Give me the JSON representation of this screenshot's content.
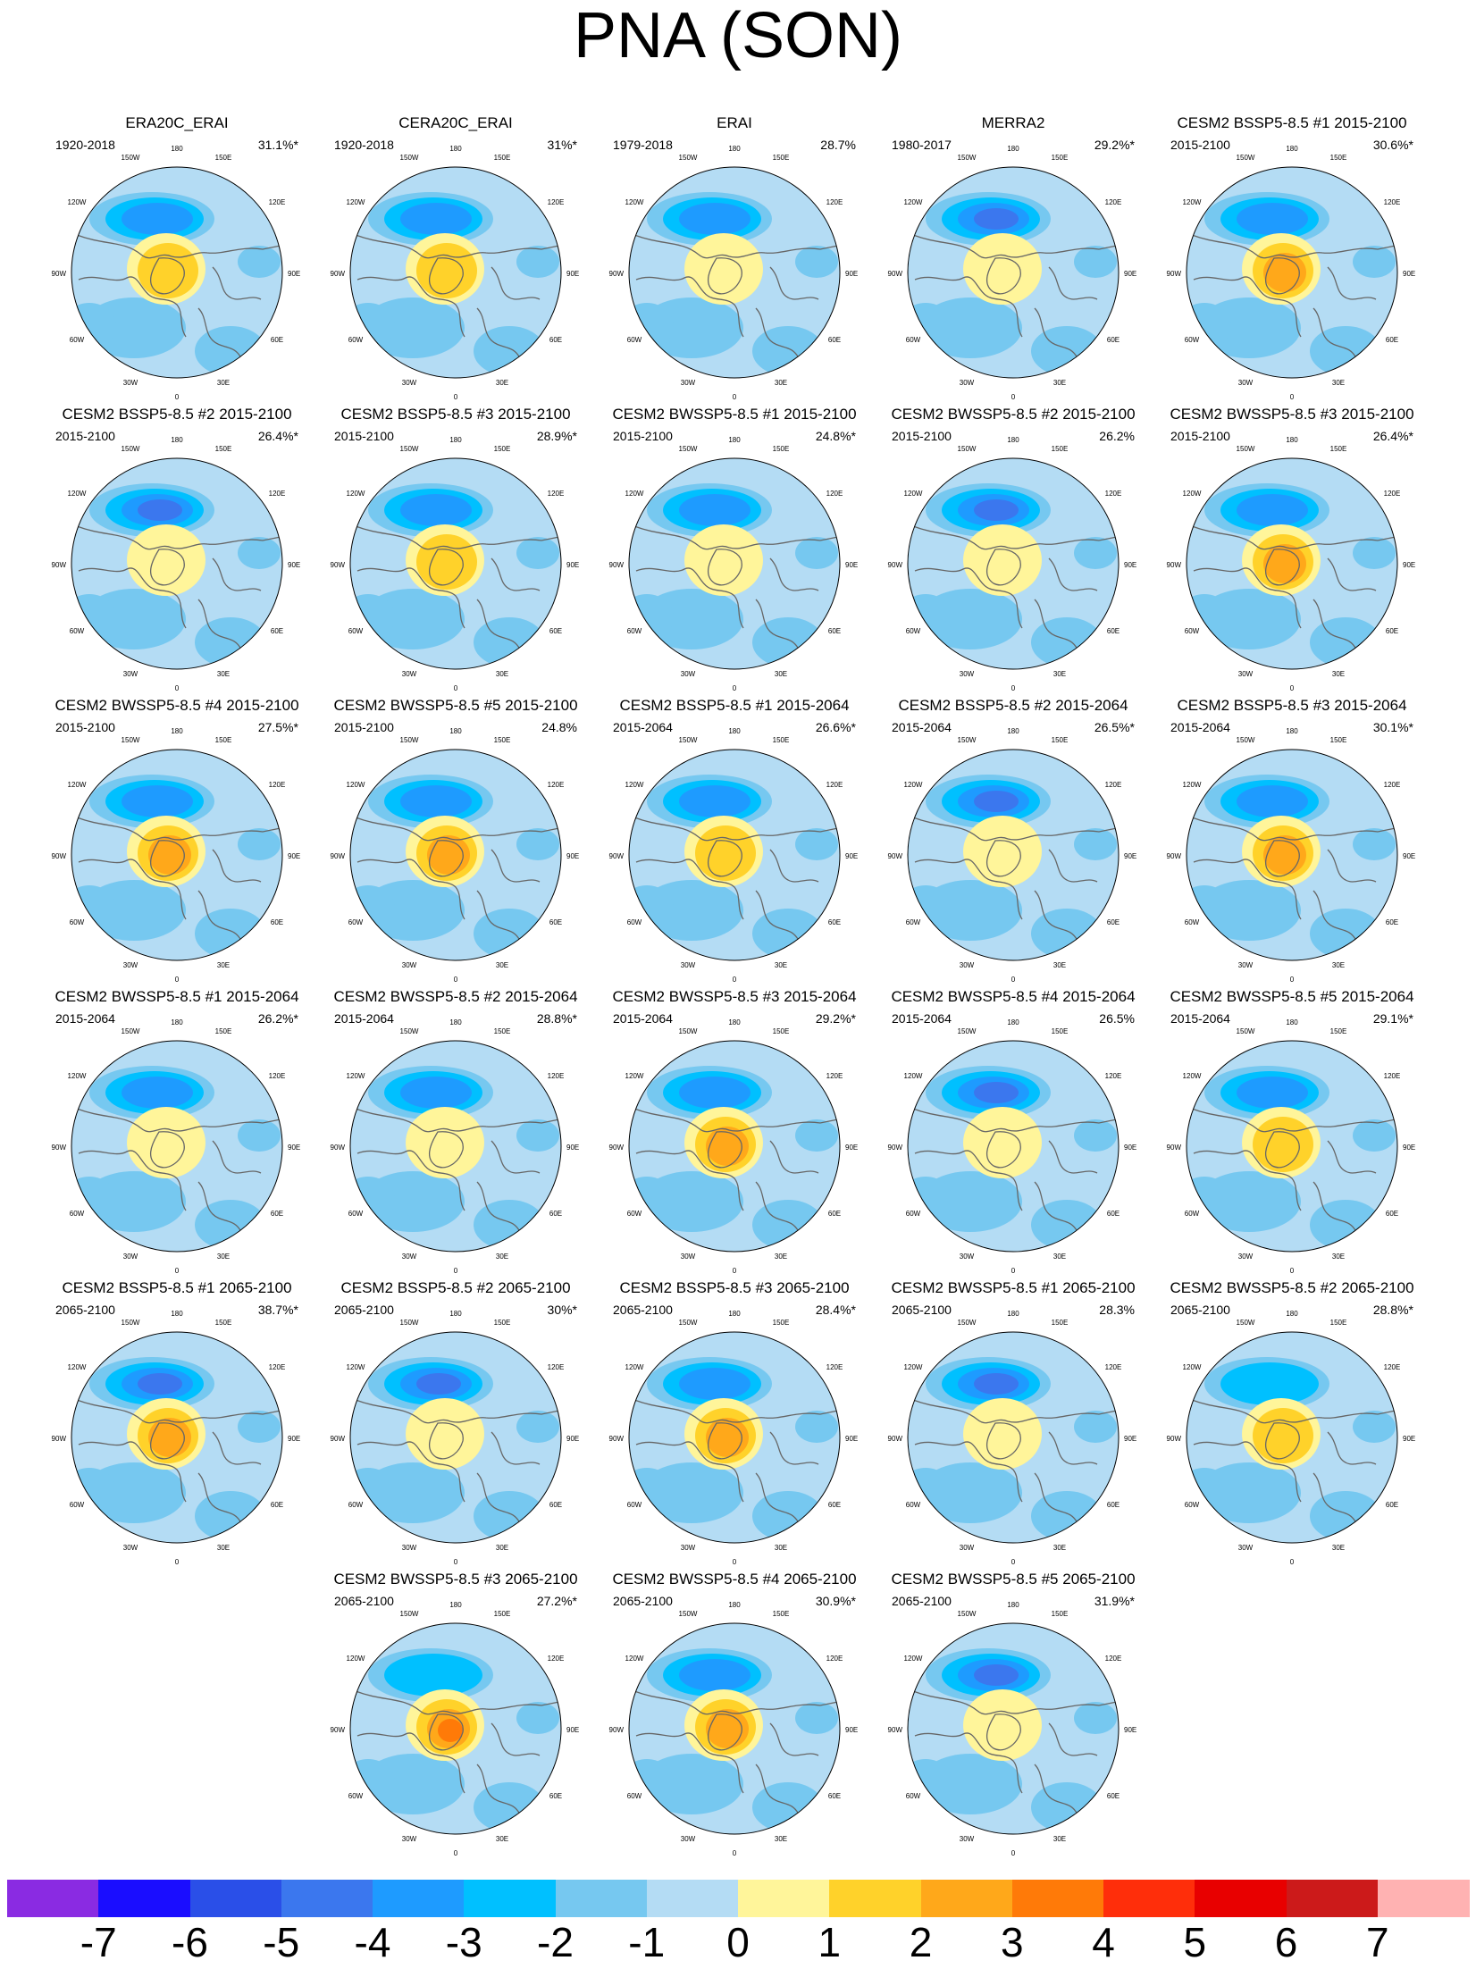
{
  "title": "PNA (SON)",
  "map_labels": [
    "180",
    "150W",
    "150E",
    "120W",
    "120E",
    "90W",
    "90E",
    "60W",
    "60E",
    "30W",
    "30E",
    "0"
  ],
  "panels": [
    {
      "title": "ERA20C_ERAI",
      "period": "1920-2018",
      "variance": "31.1%*",
      "center": 2,
      "low": -3
    },
    {
      "title": "CERA20C_ERAI",
      "period": "1920-2018",
      "variance": "31%*",
      "center": 2,
      "low": -3
    },
    {
      "title": "ERAI",
      "period": "1979-2018",
      "variance": "28.7%",
      "center": 1,
      "low": -3
    },
    {
      "title": "MERRA2",
      "period": "1980-2017",
      "variance": "29.2%*",
      "center": 1,
      "low": -4
    },
    {
      "title": "CESM2 BSSP5-8.5 #1 2015-2100",
      "period": "2015-2100",
      "variance": "30.6%*",
      "center": 3,
      "low": -3
    },
    {
      "title": "CESM2 BSSP5-8.5 #2 2015-2100",
      "period": "2015-2100",
      "variance": "26.4%*",
      "center": 1,
      "low": -4
    },
    {
      "title": "CESM2 BSSP5-8.5 #3 2015-2100",
      "period": "2015-2100",
      "variance": "28.9%*",
      "center": 2,
      "low": -3
    },
    {
      "title": "CESM2 BWSSP5-8.5 #1 2015-2100",
      "period": "2015-2100",
      "variance": "24.8%*",
      "center": 1,
      "low": -3
    },
    {
      "title": "CESM2 BWSSP5-8.5 #2 2015-2100",
      "period": "2015-2100",
      "variance": "26.2%",
      "center": 1,
      "low": -4
    },
    {
      "title": "CESM2 BWSSP5-8.5 #3 2015-2100",
      "period": "2015-2100",
      "variance": "26.4%*",
      "center": 3,
      "low": -3
    },
    {
      "title": "CESM2 BWSSP5-8.5 #4 2015-2100",
      "period": "2015-2100",
      "variance": "27.5%*",
      "center": 3,
      "low": -3
    },
    {
      "title": "CESM2 BWSSP5-8.5 #5 2015-2100",
      "period": "2015-2100",
      "variance": "24.8%",
      "center": 3,
      "low": -3
    },
    {
      "title": "CESM2 BSSP5-8.5 #1 2015-2064",
      "period": "2015-2064",
      "variance": "26.6%*",
      "center": 2,
      "low": -3
    },
    {
      "title": "CESM2 BSSP5-8.5 #2 2015-2064",
      "period": "2015-2064",
      "variance": "26.5%*",
      "center": 1,
      "low": -4
    },
    {
      "title": "CESM2 BSSP5-8.5 #3 2015-2064",
      "period": "2015-2064",
      "variance": "30.1%*",
      "center": 3,
      "low": -3
    },
    {
      "title": "CESM2 BWSSP5-8.5 #1 2015-2064",
      "period": "2015-2064",
      "variance": "26.2%*",
      "center": 1,
      "low": -3
    },
    {
      "title": "CESM2 BWSSP5-8.5 #2 2015-2064",
      "period": "2015-2064",
      "variance": "28.8%*",
      "center": 1,
      "low": -3
    },
    {
      "title": "CESM2 BWSSP5-8.5 #3 2015-2064",
      "period": "2015-2064",
      "variance": "29.2%*",
      "center": 3,
      "low": -3
    },
    {
      "title": "CESM2 BWSSP5-8.5 #4 2015-2064",
      "period": "2015-2064",
      "variance": "26.5%",
      "center": 1,
      "low": -4
    },
    {
      "title": "CESM2 BWSSP5-8.5 #5 2015-2064",
      "period": "2015-2064",
      "variance": "29.1%*",
      "center": 2,
      "low": -3
    },
    {
      "title": "CESM2 BSSP5-8.5 #1 2065-2100",
      "period": "2065-2100",
      "variance": "38.7%*",
      "center": 3,
      "low": -4
    },
    {
      "title": "CESM2 BSSP5-8.5 #2 2065-2100",
      "period": "2065-2100",
      "variance": "30%*",
      "center": 1,
      "low": -4
    },
    {
      "title": "CESM2 BSSP5-8.5 #3 2065-2100",
      "period": "2065-2100",
      "variance": "28.4%*",
      "center": 3,
      "low": -3
    },
    {
      "title": "CESM2 BWSSP5-8.5 #1 2065-2100",
      "period": "2065-2100",
      "variance": "28.3%",
      "center": 1,
      "low": -4
    },
    {
      "title": "CESM2 BWSSP5-8.5 #2 2065-2100",
      "period": "2065-2100",
      "variance": "28.8%*",
      "center": 2,
      "low": -2
    },
    {
      "title": "CESM2 BWSSP5-8.5 #3 2065-2100",
      "period": "2065-2100",
      "variance": "27.2%*",
      "center": 4,
      "low": -2
    },
    {
      "title": "CESM2 BWSSP5-8.5 #4 2065-2100",
      "period": "2065-2100",
      "variance": "30.9%*",
      "center": 3,
      "low": -3
    },
    {
      "title": "CESM2 BWSSP5-8.5 #5 2065-2100",
      "period": "2065-2100",
      "variance": "31.9%*",
      "center": 1,
      "low": -4
    }
  ],
  "chart_data": {
    "type": "heatmap",
    "title": "PNA (SON)",
    "projection": "north polar stereographic",
    "colorbar": {
      "tick_labels": [
        "-7",
        "-6",
        "-5",
        "-4",
        "-3",
        "-2",
        "-1",
        "0",
        "1",
        "2",
        "3",
        "4",
        "5",
        "6",
        "7"
      ],
      "levels": [
        -7,
        -6,
        -5,
        -4,
        -3,
        -2,
        -1,
        0,
        1,
        2,
        3,
        4,
        5,
        6,
        7
      ],
      "colors": [
        "#8a2be2",
        "#1a0dff",
        "#2a4fe8",
        "#3b77ee",
        "#1e9bff",
        "#00c0ff",
        "#76c8f0",
        "#b4dcf4",
        "#fff59a",
        "#ffd22a",
        "#ffa81a",
        "#ff7a08",
        "#ff2e0a",
        "#e80000",
        "#cc1a1a",
        "#ffb2b2"
      ]
    }
  }
}
